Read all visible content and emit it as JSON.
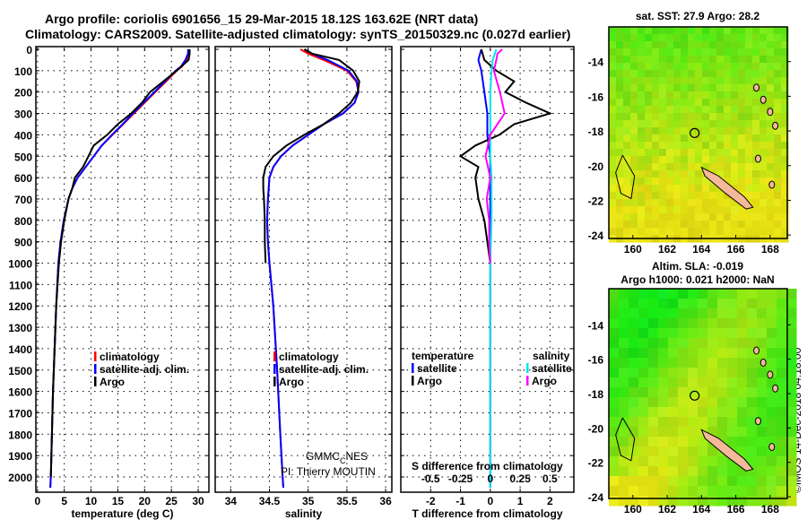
{
  "title": [
    "Argo profile: coriolis 6901656_15 29-Mar-2015 18.12S 163.62E (NRT data)",
    "Climatology: CARS2009. Satellite-adjusted climatology: synTS_20150329.nc (0.027d earlier)"
  ],
  "credits": {
    "funder": "GMMC_CNES",
    "funder_main": "GMMC",
    "funder_sub": "C",
    "funder_end": "NES",
    "pi": "PI: Thierry MOUTIN",
    "copyright": "©IMOS 14-Dec-2018 04:18:00"
  },
  "colors": {
    "climatology": "#ff0000",
    "satellite": "#0000ff",
    "argo": "#000000",
    "s_satellite": "#00e5ee",
    "s_argo": "#ff00ff"
  },
  "chart_data": [
    {
      "type": "line",
      "id": "temperature",
      "xlabel": "temperature (deg C)",
      "xlim": [
        -0.3,
        32
      ],
      "xticks": [
        "0",
        "5",
        "10",
        "15",
        "20",
        "25",
        "30"
      ],
      "xtickvals": [
        0,
        5,
        10,
        15,
        20,
        25,
        30
      ],
      "ylim": [
        0,
        2070
      ],
      "yticks": [
        "0",
        "100",
        "200",
        "300",
        "400",
        "500",
        "600",
        "700",
        "800",
        "900",
        "1000",
        "1100",
        "1200",
        "1300",
        "1400",
        "1500",
        "1600",
        "1700",
        "1800",
        "1900",
        "2000"
      ],
      "legend": [
        "climatology",
        "satellite-adj. clim.",
        "Argo"
      ],
      "series": [
        {
          "name": "climatology",
          "color": "#ff0000",
          "depth": [
            0,
            20,
            50,
            80,
            100,
            150,
            200,
            250,
            300,
            350,
            400,
            450,
            500,
            550,
            600,
            650,
            700,
            800,
            900,
            1000,
            1200,
            1400,
            1600,
            1800,
            2000,
            2050
          ],
          "values": [
            28.3,
            28.3,
            27.8,
            27,
            26,
            24,
            22,
            20,
            18,
            16,
            14,
            12,
            10.5,
            9,
            7.5,
            6.5,
            5.8,
            4.9,
            4.3,
            3.9,
            3.5,
            3.2,
            2.9,
            2.7,
            2.5,
            2.4
          ]
        },
        {
          "name": "satellite-adj. clim.",
          "color": "#0000ff",
          "depth": [
            0,
            20,
            50,
            80,
            100,
            150,
            200,
            250,
            300,
            350,
            400,
            450,
            500,
            550,
            600,
            650,
            700,
            800,
            900,
            1000,
            1200,
            1400,
            1600,
            1800,
            2000,
            2050
          ],
          "values": [
            28.1,
            28.1,
            27.6,
            26.8,
            25.8,
            23.8,
            21.8,
            19.8,
            17.8,
            15.9,
            13.9,
            12,
            10.5,
            9,
            7.5,
            6.5,
            5.8,
            4.9,
            4.3,
            3.9,
            3.5,
            3.2,
            2.9,
            2.7,
            2.5,
            2.4
          ]
        },
        {
          "name": "Argo",
          "color": "#000000",
          "depth": [
            0,
            20,
            50,
            100,
            150,
            200,
            250,
            300,
            350,
            400,
            450,
            500,
            550,
            600,
            650,
            700,
            800,
            900,
            1000,
            1200,
            1400,
            1600,
            1800,
            2000
          ],
          "values": [
            28.4,
            28.4,
            28.2,
            26,
            23.5,
            21,
            19.5,
            17.5,
            15,
            13,
            10.5,
            9.5,
            8.5,
            7,
            6.5,
            5.8,
            5,
            4.4,
            4,
            3.5,
            3.2,
            2.9,
            2.7,
            2.5
          ]
        }
      ]
    },
    {
      "type": "line",
      "id": "salinity",
      "xlabel": "salinity",
      "xlim": [
        33.8,
        36.08
      ],
      "xticks": [
        "34",
        "34.5",
        "35",
        "35.5",
        "36"
      ],
      "xtickvals": [
        34,
        34.5,
        35,
        35.5,
        36
      ],
      "ylim": [
        0,
        2070
      ],
      "legend": [
        "climatology",
        "satellite-adj. clim.",
        "Argo"
      ],
      "series": [
        {
          "name": "climatology",
          "color": "#ff0000",
          "depth": [
            0,
            20,
            50,
            100,
            150,
            200,
            250,
            300,
            350,
            400,
            450,
            500,
            550,
            600,
            700,
            800,
            900,
            1000,
            1200,
            1500,
            1800,
            2000,
            2050
          ],
          "values": [
            34.9,
            35.0,
            35.2,
            35.5,
            35.62,
            35.65,
            35.6,
            35.45,
            35.2,
            35.0,
            34.8,
            34.65,
            34.55,
            34.5,
            34.48,
            34.47,
            34.48,
            34.5,
            34.55,
            34.6,
            34.64,
            34.67,
            34.68
          ]
        },
        {
          "name": "satellite-adj. clim.",
          "color": "#0000ff",
          "depth": [
            0,
            20,
            50,
            100,
            150,
            200,
            250,
            300,
            350,
            400,
            450,
            500,
            550,
            600,
            700,
            800,
            900,
            1000,
            1200,
            1500,
            1800,
            2000,
            2050
          ],
          "values": [
            34.95,
            35.05,
            35.25,
            35.52,
            35.63,
            35.65,
            35.6,
            35.45,
            35.2,
            35.0,
            34.8,
            34.65,
            34.55,
            34.5,
            34.48,
            34.47,
            34.48,
            34.5,
            34.55,
            34.6,
            34.64,
            34.67,
            34.68
          ]
        },
        {
          "name": "Argo",
          "color": "#000000",
          "depth": [
            0,
            20,
            50,
            100,
            150,
            200,
            250,
            300,
            350,
            400,
            450,
            500,
            550,
            600,
            650,
            700,
            800,
            900,
            1000
          ],
          "values": [
            34.95,
            35.05,
            35.4,
            35.58,
            35.66,
            35.64,
            35.55,
            35.4,
            35.2,
            34.95,
            34.72,
            34.55,
            34.45,
            34.42,
            34.42,
            34.43,
            34.44,
            34.44,
            34.45
          ]
        }
      ]
    },
    {
      "type": "line",
      "id": "difference",
      "xlabel": "T difference from climatology",
      "xlabel2": "S difference from climatology",
      "xlim": [
        -3,
        2.8
      ],
      "xticks": [
        "-2",
        "-1",
        "0",
        "1",
        "2"
      ],
      "xtickvals": [
        -2,
        -1,
        0,
        1,
        2
      ],
      "s_xticks": [
        "-0.5",
        "-0.25",
        "0",
        "0.25",
        "0.5"
      ],
      "s_xtickvals": [
        -0.5,
        -0.25,
        0,
        0.25,
        0.5
      ],
      "ylim": [
        0,
        2070
      ],
      "legend_t_title": "temperature",
      "legend_s_title": "salinity",
      "legend": [
        "satellite",
        "Argo"
      ],
      "series": [
        {
          "name": "temperature satellite",
          "color": "#0000ff",
          "scale": "T",
          "depth": [
            0,
            50,
            100,
            200,
            300,
            400,
            500,
            600,
            800,
            1000,
            1500,
            2000,
            2050
          ],
          "values": [
            -0.3,
            -0.4,
            -0.3,
            -0.2,
            -0.1,
            -0.1,
            0,
            0,
            0,
            0,
            0,
            0,
            0
          ]
        },
        {
          "name": "temperature Argo",
          "color": "#000000",
          "scale": "T",
          "depth": [
            0,
            50,
            100,
            150,
            200,
            250,
            300,
            350,
            400,
            450,
            500,
            550,
            600,
            700,
            800,
            900,
            1000
          ],
          "values": [
            -0.3,
            -0.2,
            0.2,
            0.8,
            0.5,
            1.2,
            2.0,
            0.8,
            0.3,
            -0.5,
            -1.0,
            -0.4,
            -0.5,
            -0.4,
            -0.2,
            -0.1,
            0
          ]
        },
        {
          "name": "salinity satellite",
          "color": "#00e5ee",
          "scale": "S",
          "depth": [
            0,
            50,
            100,
            200,
            300,
            400,
            500,
            600,
            800,
            1000,
            1500,
            2000,
            2050
          ],
          "values": [
            0.05,
            0.02,
            0.01,
            0,
            0,
            0,
            0,
            0.01,
            0.01,
            0,
            0,
            0,
            0
          ]
        },
        {
          "name": "salinity Argo",
          "color": "#ff00ff",
          "scale": "S",
          "depth": [
            0,
            20,
            50,
            100,
            200,
            300,
            400,
            500,
            600,
            700,
            800,
            900,
            1000
          ],
          "values": [
            0.1,
            0.06,
            0.05,
            0.03,
            0.08,
            0.12,
            0,
            -0.04,
            0,
            -0.03,
            -0.01,
            -0.01,
            0
          ]
        }
      ]
    }
  ],
  "maps": [
    {
      "title": "sat. SST: 27.9 Argo: 28.2",
      "lat_ticks": [
        "-14",
        "-16",
        "-18",
        "-20",
        "-22",
        "-24"
      ],
      "lon_ticks": [
        "160",
        "162",
        "164",
        "166",
        "168"
      ]
    },
    {
      "title": "Altim. SLA: -0.019",
      "title2": "Argo h1000: 0.021 h2000: NaN",
      "lat_ticks": [
        "-14",
        "-16",
        "-18",
        "-20",
        "-22",
        "-24"
      ],
      "lon_ticks": [
        "160",
        "162",
        "164",
        "166",
        "168"
      ]
    }
  ]
}
